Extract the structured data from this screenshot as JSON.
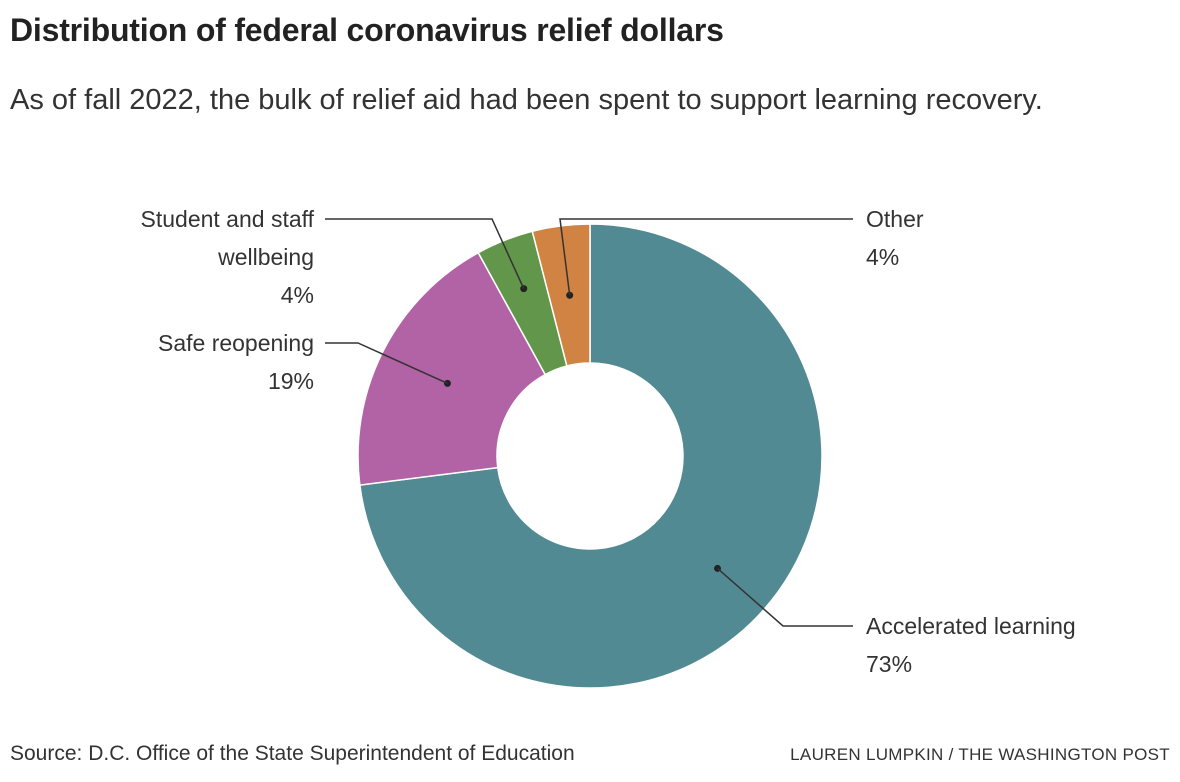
{
  "title": "Distribution of federal coronavirus relief dollars",
  "subtitle": "As of fall 2022, the bulk of relief aid had been spent to support learning recovery.",
  "source": "Source: D.C. Office of the State Superintendent of Education",
  "credit": "LAUREN LUMPKIN / THE WASHINGTON POST",
  "chart_data": {
    "type": "pie",
    "variant": "donut",
    "slices": [
      {
        "label_lines": [
          "Accelerated learning"
        ],
        "value": 73,
        "display": "73%",
        "color": "#528a93"
      },
      {
        "label_lines": [
          "Safe reopening"
        ],
        "value": 19,
        "display": "19%",
        "color": "#b163a6"
      },
      {
        "label_lines": [
          "Student and staff",
          "wellbeing"
        ],
        "value": 4,
        "display": "4%",
        "color": "#62964a"
      },
      {
        "label_lines": [
          "Other"
        ],
        "value": 4,
        "display": "4%",
        "color": "#d08343"
      }
    ]
  }
}
